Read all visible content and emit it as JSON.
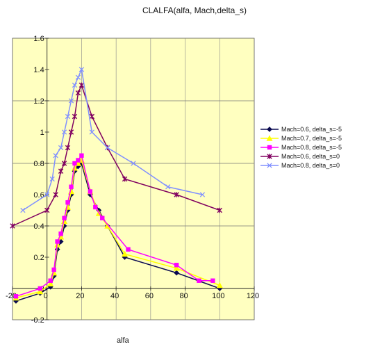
{
  "chart_data": {
    "type": "line",
    "title": "CLALFA(alfa, Mach,delta_s)",
    "xlabel": "alfa",
    "ylabel": "",
    "xlim": [
      -20,
      120
    ],
    "ylim": [
      -0.2,
      1.6
    ],
    "x_ticks": [
      -20,
      0,
      20,
      40,
      60,
      80,
      100,
      120
    ],
    "y_ticks": [
      -0.2,
      0,
      0.2,
      0.4,
      0.6,
      0.8,
      1,
      1.2,
      1.4,
      1.6
    ],
    "x_tick_labels": [
      "-20",
      "0",
      "20",
      "40",
      "60",
      "80",
      "100",
      "120"
    ],
    "y_tick_labels": [
      "-0.2",
      "0",
      "0.2",
      "0.4",
      "0.6",
      "0.8",
      "1",
      "1.2",
      "1.4",
      "1.6"
    ],
    "grid": true,
    "plot_background": "#ffffc0",
    "legend_position": "right",
    "series": [
      {
        "name": "Mach=0.6, delta_s=-5",
        "color": "#0a0a50",
        "marker": "diamond",
        "x": [
          -18,
          -4,
          2,
          4,
          6,
          8,
          10,
          12,
          14,
          16,
          18,
          20,
          25,
          30,
          35,
          45,
          75,
          100
        ],
        "y": [
          -0.08,
          -0.03,
          0.01,
          0.08,
          0.25,
          0.3,
          0.4,
          0.5,
          0.6,
          0.75,
          0.78,
          0.8,
          0.6,
          0.5,
          0.4,
          0.2,
          0.1,
          0.0
        ]
      },
      {
        "name": "Mach=0.7, delta_s=-5",
        "color": "#ffff00",
        "marker": "triangle",
        "x": [
          -18,
          -4,
          2,
          4,
          6,
          8,
          10,
          12,
          14,
          16,
          18,
          20,
          25,
          30,
          35,
          45,
          75,
          100
        ],
        "y": [
          -0.06,
          -0.02,
          0.03,
          0.1,
          0.28,
          0.33,
          0.43,
          0.52,
          0.62,
          0.77,
          0.8,
          0.82,
          0.62,
          0.48,
          0.4,
          0.22,
          0.13,
          0.02
        ]
      },
      {
        "name": "Mach=0.8, delta_s=-5",
        "color": "#ff00ff",
        "marker": "square",
        "x": [
          -18,
          -4,
          2,
          4,
          6,
          8,
          10,
          12,
          14,
          16,
          18,
          20,
          25,
          28,
          32,
          47,
          75,
          88,
          96
        ],
        "y": [
          -0.05,
          0.0,
          0.05,
          0.12,
          0.3,
          0.35,
          0.45,
          0.55,
          0.65,
          0.8,
          0.82,
          0.85,
          0.62,
          0.52,
          0.45,
          0.25,
          0.15,
          0.05,
          0.05
        ]
      },
      {
        "name": "Mach=0.6, delta_s=0",
        "color": "#800060",
        "marker": "star",
        "x": [
          -20,
          0,
          5,
          8,
          10,
          12,
          14,
          16,
          18,
          20,
          26,
          35,
          45,
          75,
          100
        ],
        "y": [
          0.4,
          0.5,
          0.6,
          0.75,
          0.8,
          0.9,
          1.0,
          1.1,
          1.25,
          1.3,
          1.1,
          0.9,
          0.7,
          0.6,
          0.5
        ]
      },
      {
        "name": "Mach=0.8, delta_s=0",
        "color": "#8090ff",
        "marker": "cross",
        "x": [
          -14,
          0,
          3,
          5,
          8,
          10,
          12,
          14,
          16,
          18,
          20,
          26,
          35,
          50,
          70,
          90
        ],
        "y": [
          0.5,
          0.6,
          0.7,
          0.85,
          0.9,
          1.0,
          1.1,
          1.2,
          1.3,
          1.35,
          1.4,
          1.0,
          0.9,
          0.8,
          0.65,
          0.6
        ]
      }
    ]
  }
}
